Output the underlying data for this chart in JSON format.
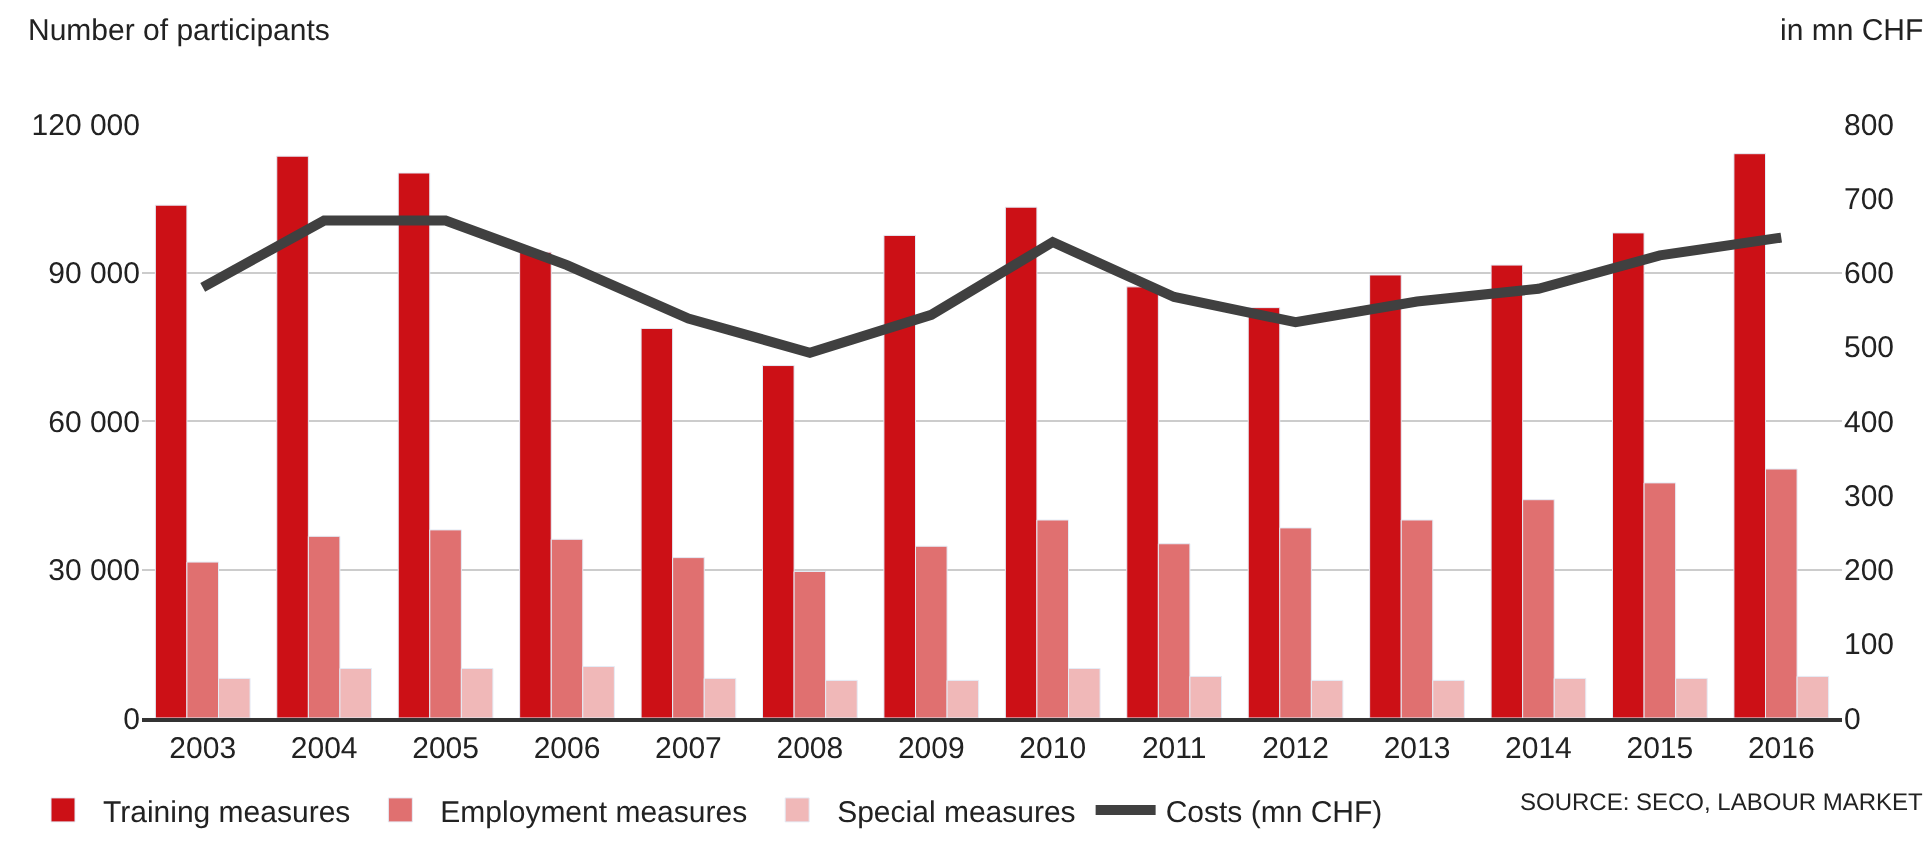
{
  "chart_data": {
    "type": "bar",
    "ylabel": "Number of participants",
    "y2label": "in mn CHF",
    "categories": [
      "2003",
      "2004",
      "2005",
      "2006",
      "2007",
      "2008",
      "2009",
      "2010",
      "2011",
      "2012",
      "2013",
      "2014",
      "2015",
      "2016"
    ],
    "series": [
      {
        "name": "Training measures",
        "color": "#cc1016",
        "values": [
          103600,
          113500,
          110100,
          94100,
          78700,
          71200,
          97500,
          103200,
          87100,
          82900,
          89500,
          91500,
          98000,
          114000
        ]
      },
      {
        "name": "Employment measures",
        "color": "#e07070",
        "values": [
          31500,
          36700,
          38000,
          36100,
          32400,
          29600,
          34700,
          40000,
          35200,
          38400,
          40000,
          44100,
          47500,
          50300
        ]
      },
      {
        "name": "Special measures",
        "color": "#f0b8b8",
        "values": [
          8000,
          10000,
          10000,
          10400,
          8000,
          7600,
          7600,
          10000,
          8400,
          7600,
          7600,
          8000,
          8000,
          8400
        ]
      },
      {
        "name": "Costs (mn CHF)",
        "type": "line",
        "axis": "y2",
        "color": "#404040",
        "values": [
          580,
          670,
          670,
          610,
          538,
          492,
          543,
          641,
          567,
          533,
          561,
          578,
          623,
          647
        ]
      }
    ],
    "ylim": [
      0,
      120000
    ],
    "yticks": [
      0,
      {
        "value": 30000,
        "label": "30 000"
      },
      {
        "value": 60000,
        "label": "60 000"
      },
      {
        "value": 90000,
        "label": "90 000"
      },
      {
        "value": 120000,
        "label": "120 000"
      }
    ],
    "y2lim": [
      0,
      800
    ],
    "y2ticks": [
      0,
      100,
      200,
      300,
      400,
      500,
      600,
      700,
      800
    ],
    "grid": "y",
    "legend": "bottom",
    "marker": "none",
    "line_style": "solid",
    "annotations": [
      "SOURCE: SECO, LABOUR MARKET"
    ]
  }
}
